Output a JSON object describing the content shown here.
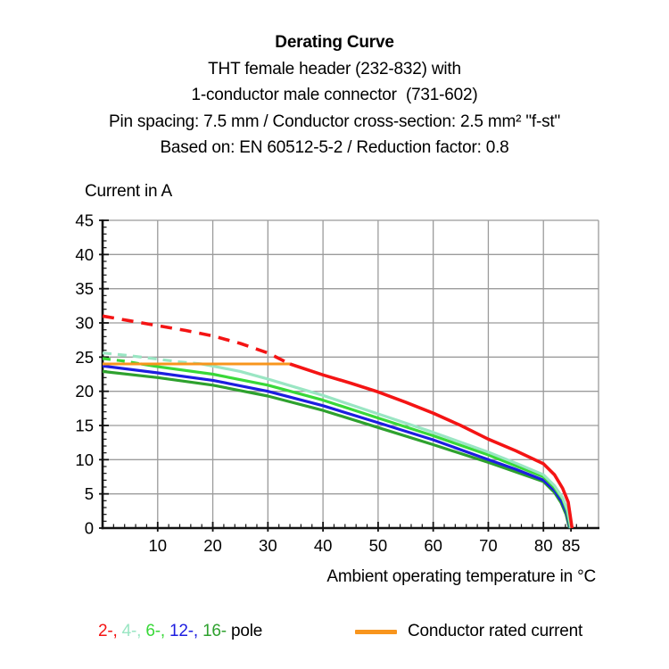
{
  "header": {
    "title": "Derating Curve",
    "lines": [
      "THT female header (232-832) with",
      "1-conductor male connector  (731-602)",
      "Pin spacing: 7.5 mm / Conductor cross-section: 2.5 mm² \"f-st\"",
      "Based on: EN 60512-5-2 / Reduction factor: 0.8"
    ]
  },
  "chart_data": {
    "type": "line",
    "title": "Derating Curve",
    "ylabel": "Current in A",
    "xlabel": "Ambient operating temperature in °C",
    "xlim": [
      0,
      90
    ],
    "ylim": [
      0,
      45
    ],
    "grid": true,
    "grid_color": "#9b9b9b",
    "axis_color": "#111111",
    "x_gridlines": [
      10,
      20,
      30,
      40,
      50,
      60,
      70,
      80,
      90
    ],
    "y_gridlines": [
      5,
      10,
      15,
      20,
      25,
      30,
      35,
      40,
      45
    ],
    "x_tick_labels": [
      10,
      20,
      30,
      40,
      50,
      60,
      70,
      80,
      85
    ],
    "y_tick_labels": [
      0,
      5,
      10,
      15,
      20,
      25,
      30,
      35,
      40,
      45
    ],
    "x_minor_step": 2,
    "y_minor_step": 1,
    "note": "Pole curves are dashed above the conductor rated current (24 A) and solid below it; all curves fall to 0 A at ~85 °C",
    "series": [
      {
        "name": "2-pole",
        "color": "#f41414",
        "width": 3.6,
        "dash": "13 9",
        "dashed": [
          [
            0,
            31
          ],
          [
            5,
            30.3
          ],
          [
            10,
            29.6
          ],
          [
            15,
            28.9
          ],
          [
            20,
            28.1
          ],
          [
            25,
            27
          ],
          [
            30,
            25.6
          ],
          [
            34,
            24
          ]
        ],
        "solid": [
          [
            34,
            24
          ],
          [
            40,
            22.4
          ],
          [
            45,
            21.2
          ],
          [
            50,
            19.9
          ],
          [
            55,
            18.4
          ],
          [
            60,
            16.8
          ],
          [
            65,
            15
          ],
          [
            70,
            13
          ],
          [
            75,
            11.3
          ],
          [
            80,
            9.4
          ],
          [
            82,
            7.8
          ],
          [
            83.5,
            5.8
          ],
          [
            84.5,
            3.8
          ],
          [
            85.2,
            0
          ]
        ]
      },
      {
        "name": "4-pole",
        "color": "#9ae6c3",
        "width": 3.2,
        "dash": "10 7",
        "dashed": [
          [
            0,
            25.6
          ],
          [
            5,
            25.2
          ],
          [
            10,
            24.7
          ],
          [
            14,
            24.3
          ],
          [
            18,
            24
          ]
        ],
        "solid": [
          [
            18,
            24
          ],
          [
            25,
            22.9
          ],
          [
            30,
            21.8
          ],
          [
            40,
            19.4
          ],
          [
            50,
            16.7
          ],
          [
            60,
            14
          ],
          [
            70,
            11.1
          ],
          [
            75,
            9.5
          ],
          [
            80,
            7.8
          ],
          [
            82,
            6.2
          ],
          [
            83.5,
            4.4
          ],
          [
            84.4,
            2.6
          ],
          [
            85,
            0
          ]
        ]
      },
      {
        "name": "6-pole",
        "color": "#38d838",
        "width": 3.2,
        "dash": "9 7",
        "dashed": [
          [
            0,
            24.8
          ],
          [
            4,
            24.4
          ],
          [
            7,
            24
          ]
        ],
        "solid": [
          [
            7,
            24
          ],
          [
            10,
            23.6
          ],
          [
            20,
            22.5
          ],
          [
            30,
            20.9
          ],
          [
            40,
            18.7
          ],
          [
            50,
            16.1
          ],
          [
            60,
            13.5
          ],
          [
            70,
            10.7
          ],
          [
            75,
            9.1
          ],
          [
            80,
            7.5
          ],
          [
            82,
            5.9
          ],
          [
            83.5,
            4.2
          ],
          [
            84.3,
            2.4
          ],
          [
            84.9,
            0
          ]
        ]
      },
      {
        "name": "12-pole",
        "color": "#1d1de0",
        "width": 3.2,
        "solid": [
          [
            0,
            23.7
          ],
          [
            10,
            22.7
          ],
          [
            20,
            21.6
          ],
          [
            30,
            20
          ],
          [
            40,
            17.9
          ],
          [
            50,
            15.4
          ],
          [
            60,
            12.9
          ],
          [
            70,
            10
          ],
          [
            75,
            8.6
          ],
          [
            80,
            7
          ],
          [
            82,
            5.5
          ],
          [
            83.3,
            3.9
          ],
          [
            84.2,
            2.2
          ],
          [
            84.8,
            0
          ]
        ]
      },
      {
        "name": "16-pole",
        "color": "#2ea12e",
        "width": 3.2,
        "solid": [
          [
            0,
            22.9
          ],
          [
            10,
            22
          ],
          [
            20,
            20.9
          ],
          [
            30,
            19.3
          ],
          [
            40,
            17.2
          ],
          [
            50,
            14.7
          ],
          [
            60,
            12.2
          ],
          [
            70,
            9.6
          ],
          [
            75,
            8.2
          ],
          [
            80,
            6.8
          ],
          [
            82,
            5.2
          ],
          [
            83.2,
            3.7
          ],
          [
            84.1,
            2
          ],
          [
            84.7,
            0
          ]
        ]
      }
    ],
    "rated_current": {
      "name": "Conductor rated current",
      "color": "#f8951d",
      "width": 3,
      "value": 24,
      "points": [
        [
          0,
          24
        ],
        [
          34,
          24
        ]
      ]
    },
    "draw_order": [
      "16-pole",
      "12-pole",
      "6-pole",
      "4-pole",
      "rated",
      "2-pole"
    ],
    "legend_position": "bottom"
  },
  "legend": {
    "poles": {
      "items": [
        {
          "label": "2-",
          "color": "#f41414"
        },
        {
          "label": "4-",
          "color": "#9ae6c3"
        },
        {
          "label": "6-",
          "color": "#38d838"
        },
        {
          "label": "12-",
          "color": "#1d1de0"
        },
        {
          "label": "16-",
          "color": "#2ea12e"
        }
      ],
      "suffix": "pole"
    },
    "rated": {
      "label": "Conductor rated current",
      "color": "#f8951d"
    }
  }
}
